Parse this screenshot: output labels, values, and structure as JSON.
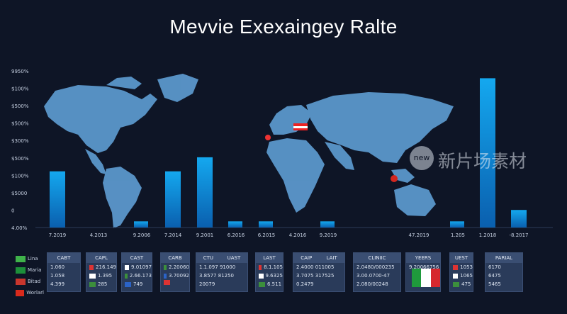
{
  "title": "Mevvie Exexaingey Ralte",
  "watermark": {
    "badge": "new",
    "text": "新片场素材"
  },
  "chart_data": {
    "type": "bar",
    "title": "Mevvie Exexaingey Ralte",
    "y_tick_labels": [
      "9950%",
      "$100%",
      "$500%",
      "$500%",
      "$300%",
      "$500%",
      "$100%",
      "$5000",
      "0",
      "4.00%"
    ],
    "categories": [
      "7.2019",
      "4.2013",
      "9.2006",
      "7.2014",
      "9.2001",
      "6.2016",
      "6.2015",
      "4.2016",
      "9.2019",
      "47.2019",
      "1.205",
      "1.2018",
      "-8.2017"
    ],
    "values": [
      3.2,
      0,
      0.35,
      3.2,
      4.0,
      0.35,
      0.35,
      0,
      0.35,
      0,
      0.35,
      8.5,
      1.0
    ],
    "ylim": [
      0,
      9
    ],
    "grid": false,
    "colors": {
      "bar_top": "#14a8ef",
      "bar_bottom": "#0a5fae",
      "map": "#5d9bd0"
    }
  },
  "legend": [
    {
      "label": "Lina",
      "color": "#3fb24a"
    },
    {
      "label": "Maria",
      "color": "#1d8f3a"
    },
    {
      "label": "Bitad",
      "color": "#c8362d"
    },
    {
      "label": "Worlarl",
      "color": "#d92a1c"
    }
  ],
  "panels": [
    {
      "headers": [
        "CABT"
      ],
      "rows": [
        "1.060",
        "1.058",
        "4.399"
      ]
    },
    {
      "headers": [
        "CAPL"
      ],
      "rows": [
        "216.149",
        "1.395",
        "285"
      ]
    },
    {
      "headers": [
        "CAST"
      ],
      "rows": [
        "9.01097",
        "2.66.173",
        "749"
      ]
    },
    {
      "headers": [
        "CARB"
      ],
      "rows": [
        "2.20060",
        "3.70092",
        ""
      ]
    },
    {
      "headers": [
        "CTU",
        "UAST"
      ],
      "rows": [
        "1.1.097   91000",
        "3.8577   81250",
        "20079"
      ]
    },
    {
      "headers": [
        "LAST"
      ],
      "rows": [
        "8.1.105",
        "9.6325",
        "6.511"
      ]
    },
    {
      "headers": [
        "CAIP",
        "LAIT"
      ],
      "rows": [
        "2.4000   011005",
        "3.7075   317525",
        "0.2479"
      ]
    },
    {
      "headers": [
        "CLINIIC"
      ],
      "rows": [
        "2.0480/000235",
        "3.00.0700-47",
        "2.080/00248"
      ]
    },
    {
      "headers": [
        "YEERS"
      ],
      "rows": [
        "9.20066756"
      ]
    },
    {
      "headers": [
        "UEST"
      ],
      "rows": [
        "1053",
        "1065",
        "475"
      ]
    },
    {
      "headers": [
        "PARIAL"
      ],
      "rows": [
        "6170",
        "6475",
        "5465"
      ]
    }
  ]
}
